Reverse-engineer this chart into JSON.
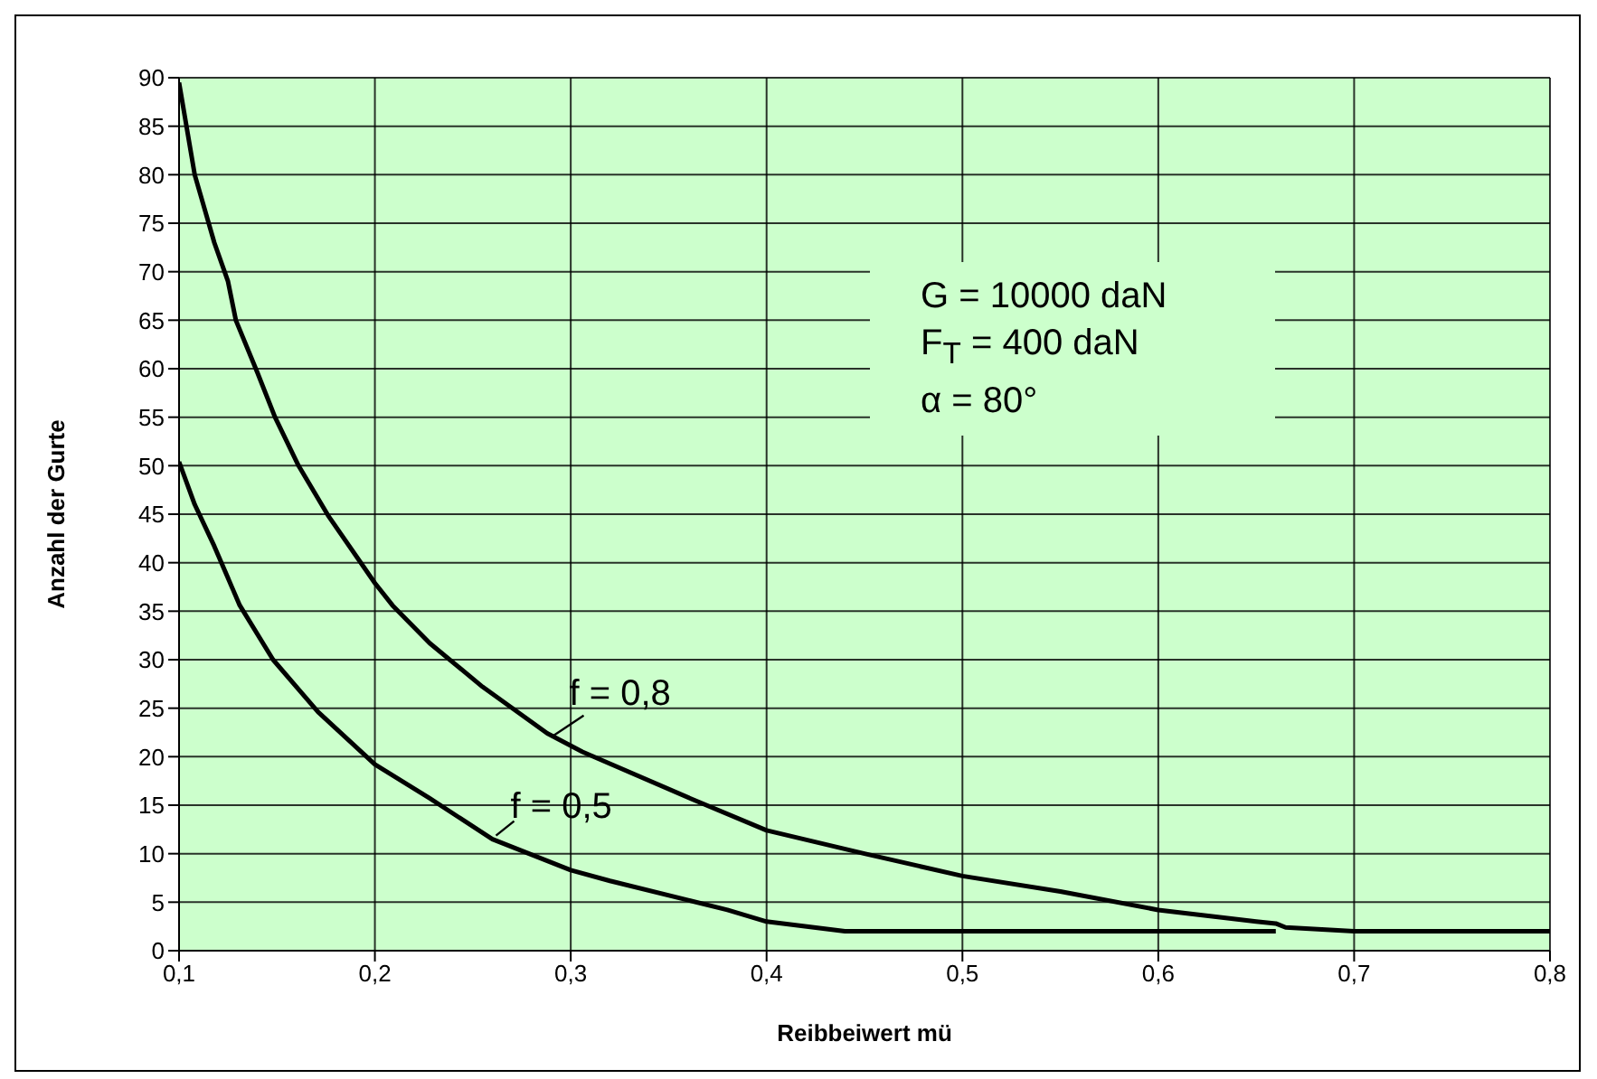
{
  "chart_data": {
    "type": "line",
    "xlabel": "Reibbeiwert mü",
    "ylabel": "Anzahl der Gurte",
    "xlim": [
      0.1,
      0.8
    ],
    "xticks": [
      {
        "value": 0.1,
        "label": "0,1"
      },
      {
        "value": 0.2,
        "label": "0,2"
      },
      {
        "value": 0.3,
        "label": "0,3"
      },
      {
        "value": 0.4,
        "label": "0,4"
      },
      {
        "value": 0.5,
        "label": "0,5"
      },
      {
        "value": 0.6,
        "label": "0,6"
      },
      {
        "value": 0.7,
        "label": "0,7"
      },
      {
        "value": 0.8,
        "label": "0,8"
      }
    ],
    "ylim": [
      0,
      90
    ],
    "yticks": [
      0,
      5,
      10,
      15,
      20,
      25,
      30,
      35,
      40,
      45,
      50,
      55,
      60,
      65,
      70,
      75,
      80,
      85,
      90
    ],
    "grid": true,
    "legend": false,
    "series": [
      {
        "color": "#000000",
        "x": [
          0.1,
          0.108,
          0.118,
          0.125,
          0.129,
          0.14,
          0.149,
          0.161,
          0.176,
          0.2,
          0.209,
          0.228,
          0.255,
          0.288,
          0.306,
          0.361,
          0.4,
          0.45,
          0.5,
          0.55,
          0.6,
          0.65,
          0.66,
          0.665,
          0.7,
          0.8
        ],
        "values": [
          89.5,
          80,
          73,
          69,
          65,
          59.6,
          55,
          50,
          44.9,
          37.9,
          35.6,
          31.7,
          27.2,
          22.4,
          20.5,
          15.7,
          12.4,
          10,
          7.7,
          6.1,
          4.2,
          3,
          2.8,
          2.4,
          2,
          2
        ]
      },
      {
        "color": "#000000",
        "x": [
          0.1,
          0.108,
          0.118,
          0.131,
          0.148,
          0.171,
          0.2,
          0.228,
          0.26,
          0.3,
          0.32,
          0.36,
          0.38,
          0.4,
          0.44,
          0.66
        ],
        "values": [
          50.4,
          46,
          41.7,
          35.6,
          30,
          24.6,
          19.2,
          15.7,
          11.5,
          8.3,
          7.2,
          5.2,
          4.2,
          3,
          2,
          2
        ]
      }
    ],
    "annotations": [
      {
        "text": "f = 0,8",
        "x": 0.29,
        "y": 22
      },
      {
        "text": "f = 0,5",
        "x": 0.26,
        "y": 11.5
      },
      "G = 10000 daN",
      "F$_{T}$ = 400 daN",
      "α = 80°"
    ]
  }
}
